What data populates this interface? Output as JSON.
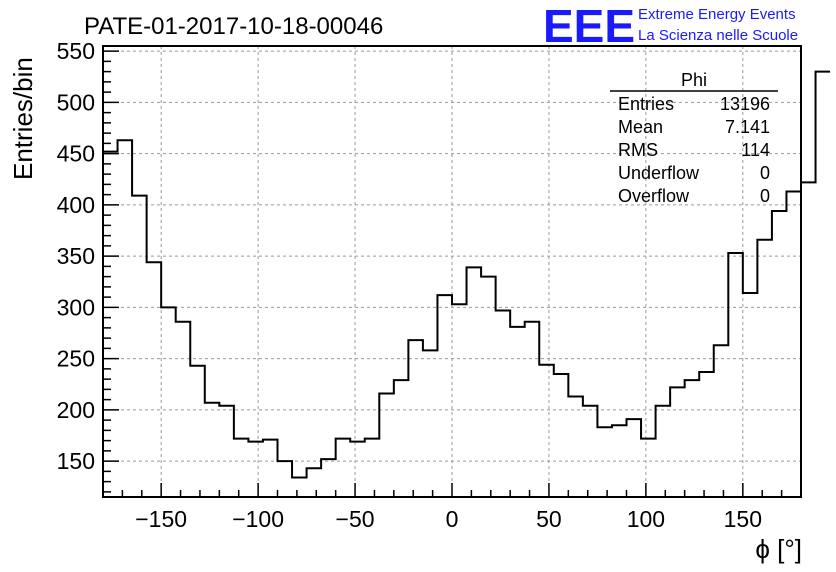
{
  "chart_data": {
    "type": "bar",
    "title": "PATE-01-2017-10-18-00046",
    "xlabel": "ϕ [°]",
    "ylabel": "Entries/bin",
    "xlim": [
      -180,
      180
    ],
    "ylim": [
      115,
      555
    ],
    "grid": true,
    "x_ticks": [
      -150,
      -100,
      -50,
      0,
      50,
      100,
      150
    ],
    "y_ticks": [
      150,
      200,
      250,
      300,
      350,
      400,
      450,
      500,
      550
    ],
    "bin_width": 7.5,
    "bin_edges_start": -180,
    "values": [
      452,
      463,
      409,
      344,
      300,
      286,
      243,
      207,
      204,
      172,
      169,
      171,
      150,
      134,
      143,
      152,
      172,
      169,
      172,
      216,
      229,
      268,
      258,
      312,
      303,
      339,
      330,
      297,
      281,
      286,
      244,
      235,
      213,
      204,
      183,
      185,
      191,
      172,
      204,
      222,
      229,
      237,
      263,
      353,
      314,
      366,
      394,
      413,
      422,
      530
    ],
    "stats": {
      "name": "Phi",
      "rows": [
        {
          "label": "Entries",
          "value": "13196"
        },
        {
          "label": "Mean",
          "value": "7.141"
        },
        {
          "label": "RMS",
          "value": "114"
        },
        {
          "label": "Underflow",
          "value": "0"
        },
        {
          "label": "Overflow",
          "value": "0"
        }
      ]
    },
    "line_color": "#000000",
    "grid_color": "#999999"
  },
  "logo": {
    "text": "EEE",
    "line1": "Extreme Energy Events",
    "line2": "La Scienza nelle Scuole",
    "color": "#1a1aff"
  }
}
